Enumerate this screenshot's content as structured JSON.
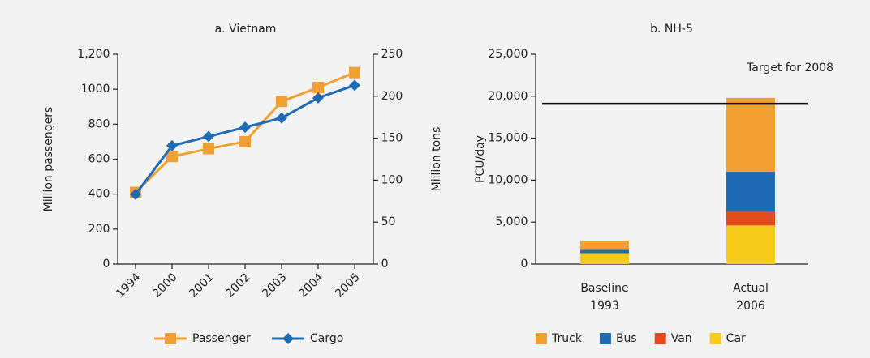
{
  "chart_data": [
    {
      "type": "line",
      "title": "a. Vietnam",
      "ylabel": "Million passengers",
      "y2label": "Million tons",
      "categories": [
        "1994",
        "2000",
        "2001",
        "2002",
        "2003",
        "2004",
        "2005"
      ],
      "series": [
        {
          "name": "Passenger",
          "color": "#f0a030",
          "marker": "square",
          "values": [
            410,
            615,
            660,
            700,
            930,
            1010,
            1095
          ]
        },
        {
          "name": "Cargo",
          "color": "#1f6bb5",
          "marker": "diamond",
          "axis": "y2",
          "values": [
            83,
            141,
            152,
            163,
            174,
            198,
            213
          ]
        }
      ],
      "ylim": [
        0,
        1200
      ],
      "yticks": [
        0,
        200,
        400,
        600,
        800,
        1000,
        {
          "value": 1200,
          "label": "1,200"
        }
      ],
      "y2lim": [
        0,
        250
      ],
      "y2ticks": [
        0,
        50,
        100,
        150,
        200,
        250
      ],
      "legend": "bottom"
    },
    {
      "type": "stacked_bar",
      "title": "b. NH-5",
      "ylabel": "PCU/day",
      "categories": [
        "Baseline 1993",
        "Actual 2006"
      ],
      "series": [
        {
          "name": "Car",
          "color": "#f5cc1a",
          "values": [
            1300,
            4600
          ]
        },
        {
          "name": "Van",
          "color": "#e04a1e",
          "values": [
            0,
            1600
          ]
        },
        {
          "name": "Bus",
          "color": "#1f6bb5",
          "values": [
            400,
            4800
          ]
        },
        {
          "name": "Truck",
          "color": "#f0a030",
          "values": [
            1100,
            8800
          ]
        }
      ],
      "ylim": [
        0,
        25000
      ],
      "yticks": [
        0,
        {
          "value": 5000,
          "label": "5,000"
        },
        {
          "value": 10000,
          "label": "10,000"
        },
        {
          "value": 15000,
          "label": "15,000"
        },
        {
          "value": 20000,
          "label": "20,000"
        },
        {
          "value": 25000,
          "label": "25,000"
        }
      ],
      "annotation": {
        "label": "Target for 2008",
        "value": 19100
      },
      "legend": "bottom"
    }
  ]
}
